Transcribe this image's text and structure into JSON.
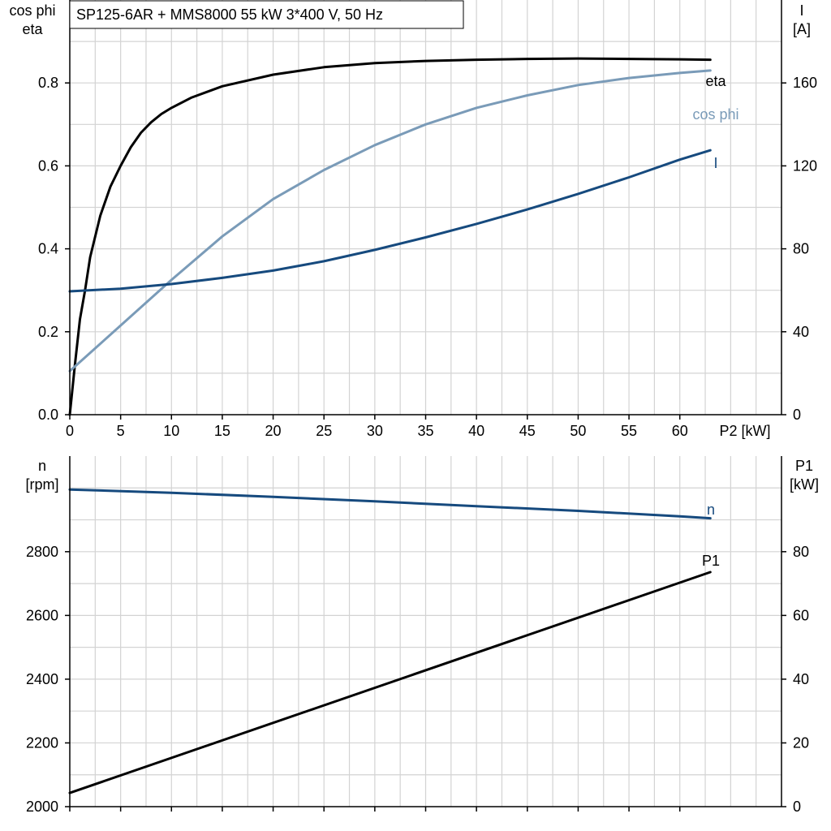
{
  "chart_data": [
    {
      "type": "line",
      "title": "SP125-6AR + MMS8000   55 kW   3*400 V, 50 Hz",
      "xlabel": "P2 [kW]",
      "xlim": [
        0,
        70
      ],
      "x_ticks": [
        0,
        5,
        10,
        15,
        20,
        25,
        30,
        35,
        40,
        45,
        50,
        55,
        60
      ],
      "x_tick_labels": [
        "0",
        "5",
        "10",
        "15",
        "20",
        "25",
        "30",
        "35",
        "40",
        "45",
        "50",
        "55",
        "60"
      ],
      "ylabel_left": [
        "cos phi",
        "eta"
      ],
      "ylim_left": [
        0,
        1.0
      ],
      "y_ticks_left": [
        0.0,
        0.2,
        0.4,
        0.6,
        0.8
      ],
      "y_tick_labels_left": [
        "0.0",
        "0.2",
        "0.4",
        "0.6",
        "0.8"
      ],
      "ylabel_right": [
        "I",
        "[A]"
      ],
      "ylim_right": [
        0,
        200
      ],
      "y_ticks_right": [
        0,
        40,
        80,
        120,
        160
      ],
      "y_tick_labels_right": [
        "0",
        "40",
        "80",
        "120",
        "160"
      ],
      "grid": true,
      "series": [
        {
          "name": "eta",
          "axis": "left",
          "color": "#000000",
          "x": [
            0,
            0.5,
            1,
            1.5,
            2,
            3,
            4,
            5,
            6,
            7,
            8,
            9,
            10,
            12,
            15,
            20,
            25,
            30,
            35,
            40,
            45,
            50,
            55,
            60,
            63
          ],
          "y": [
            0.0,
            0.12,
            0.23,
            0.3,
            0.38,
            0.48,
            0.55,
            0.6,
            0.645,
            0.68,
            0.705,
            0.725,
            0.74,
            0.765,
            0.792,
            0.82,
            0.838,
            0.848,
            0.853,
            0.856,
            0.858,
            0.859,
            0.858,
            0.857,
            0.856
          ]
        },
        {
          "name": "cos phi",
          "axis": "left",
          "color": "#7a9bb8",
          "x": [
            0,
            5,
            10,
            15,
            20,
            25,
            30,
            35,
            40,
            45,
            50,
            55,
            60,
            63
          ],
          "y": [
            0.105,
            0.215,
            0.325,
            0.43,
            0.52,
            0.59,
            0.65,
            0.7,
            0.74,
            0.77,
            0.795,
            0.812,
            0.824,
            0.83
          ]
        },
        {
          "name": "I",
          "axis": "right",
          "color": "#164a7e",
          "x": [
            0,
            5,
            10,
            15,
            20,
            25,
            30,
            35,
            40,
            45,
            50,
            55,
            60,
            63
          ],
          "y": [
            59.5,
            60.8,
            63,
            66,
            69.5,
            74,
            79.5,
            85.5,
            92,
            99,
            106.5,
            114.5,
            123,
            127.5
          ]
        }
      ]
    },
    {
      "type": "line",
      "xlim": [
        0,
        70
      ],
      "x_ticks": [
        0,
        5,
        10,
        15,
        20,
        25,
        30,
        35,
        40,
        45,
        50,
        55,
        60
      ],
      "ylabel_left": [
        "n",
        "[rpm]"
      ],
      "ylim_left": [
        2000,
        3100
      ],
      "y_ticks_left": [
        2000,
        2200,
        2400,
        2600,
        2800
      ],
      "y_tick_labels_left": [
        "2000",
        "2200",
        "2400",
        "2600",
        "2800"
      ],
      "ylabel_right": [
        "P1",
        "[kW]"
      ],
      "ylim_right": [
        0,
        110
      ],
      "y_ticks_right": [
        0,
        20,
        40,
        60,
        80
      ],
      "y_tick_labels_right": [
        "0",
        "20",
        "40",
        "60",
        "80"
      ],
      "grid": true,
      "series": [
        {
          "name": "n",
          "axis": "left",
          "color": "#164a7e",
          "x": [
            0,
            10,
            20,
            30,
            40,
            50,
            60,
            63
          ],
          "y": [
            2995,
            2985,
            2972,
            2958,
            2943,
            2928,
            2911,
            2905
          ]
        },
        {
          "name": "P1",
          "axis": "right",
          "color": "#000000",
          "x": [
            0,
            63
          ],
          "y": [
            4.3,
            73.6
          ]
        }
      ]
    }
  ]
}
